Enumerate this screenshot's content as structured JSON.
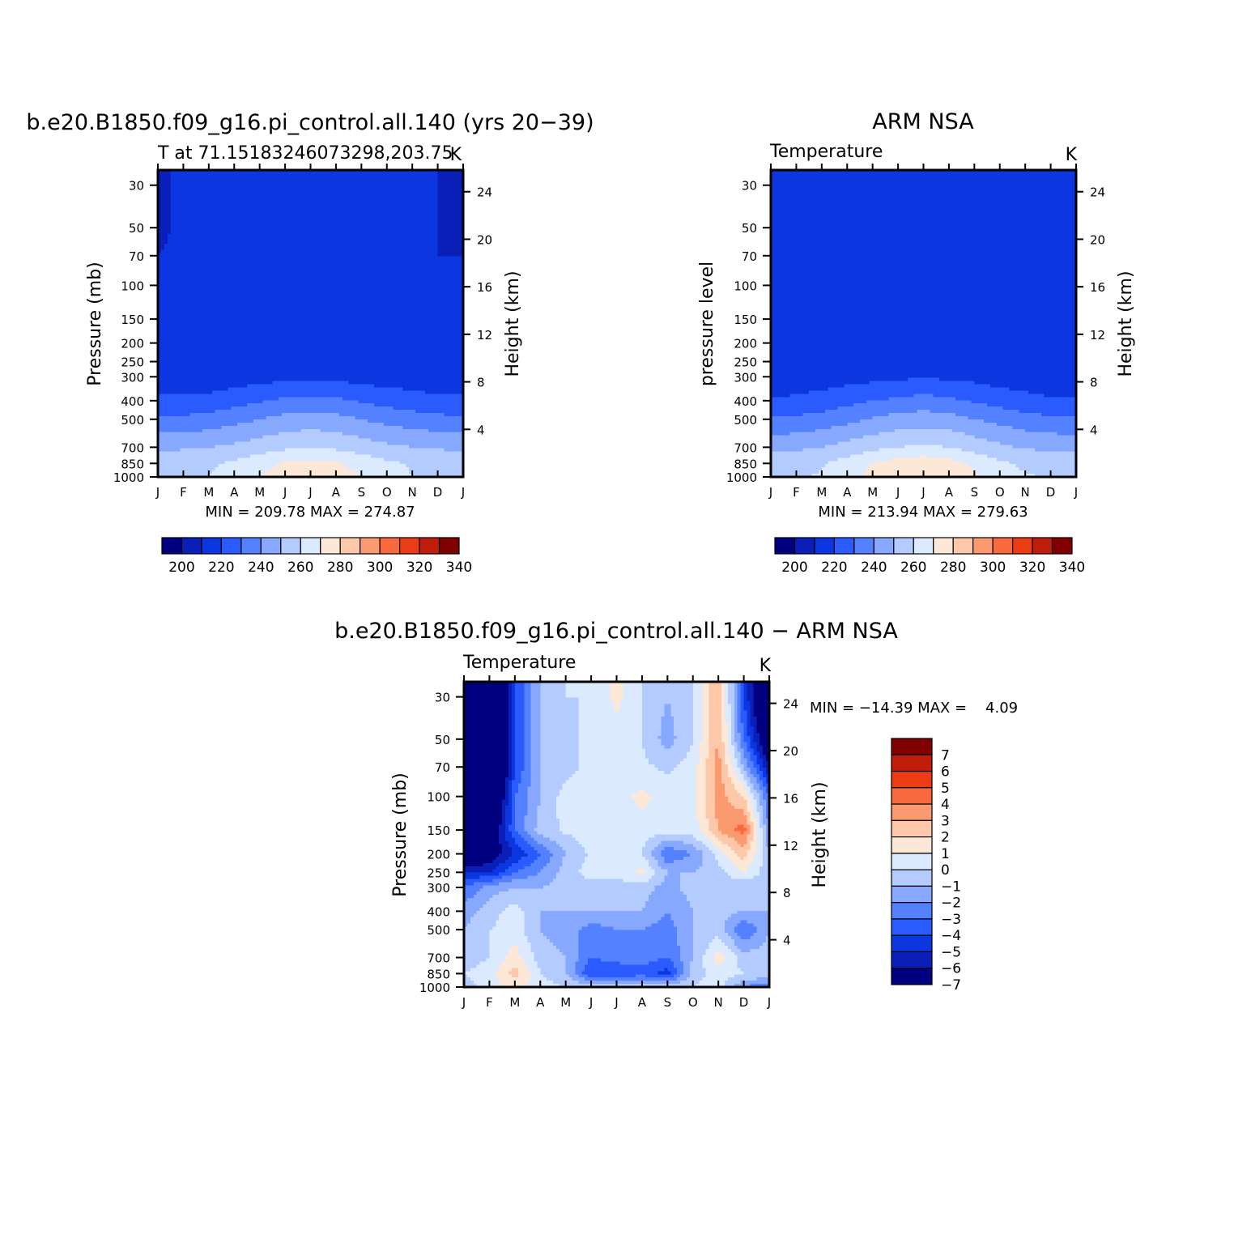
{
  "colors": {
    "abs_scale": [
      "#000080",
      "#0a1fb8",
      "#0b36e0",
      "#2a5bff",
      "#5381ff",
      "#86a8ff",
      "#b4cbff",
      "#dceaff",
      "#fde8d8",
      "#fdc7aa",
      "#fb9a6e",
      "#f86a3e",
      "#ec3c14",
      "#c01e0a",
      "#800000"
    ],
    "diff_scale": [
      "#000080",
      "#0a1fb8",
      "#0b36e0",
      "#2a5bff",
      "#5381ff",
      "#86a8ff",
      "#b4cbff",
      "#dceaff",
      "#fde8d8",
      "#fdc7aa",
      "#fb9a6e",
      "#f86a3e",
      "#ec3c14",
      "#c01e0a",
      "#800000"
    ]
  },
  "chart_data": [
    {
      "id": "model",
      "type": "heatmap",
      "title": "b.e20.B1850.f09_g16.pi_control.all.140 (yrs 20−39)",
      "subtitle_left": "T at 71.15183246073298,203.75",
      "subtitle_right": "K",
      "ylabel": "Pressure (mb)",
      "y2label": "Height (km)",
      "x_ticks": [
        "J",
        "F",
        "M",
        "A",
        "M",
        "J",
        "J",
        "A",
        "S",
        "O",
        "N",
        "D",
        "J"
      ],
      "y_ticks": [
        30,
        50,
        70,
        100,
        150,
        200,
        250,
        300,
        400,
        500,
        700,
        850,
        1000
      ],
      "y2_ticks": [
        24,
        20,
        16,
        12,
        8,
        4
      ],
      "y_scale": "log",
      "ylim": [
        1000,
        25
      ],
      "stats": "MIN = 209.78 MAX = 274.87",
      "colorbar_labels": [
        "200",
        "220",
        "240",
        "260",
        "280",
        "300",
        "320",
        "340"
      ],
      "levels": [
        195,
        200,
        205,
        210,
        215,
        220,
        230,
        240,
        250,
        260,
        270,
        280,
        290,
        300,
        310,
        320,
        330,
        340,
        350
      ],
      "pressure_levels": [
        25,
        30,
        50,
        70,
        100,
        150,
        200,
        250,
        300,
        400,
        500,
        700,
        850,
        1000
      ],
      "values": [
        [
          209,
          211,
          212,
          214,
          214,
          215,
          217,
          216,
          215,
          213,
          211,
          210,
          209
        ],
        [
          209,
          211,
          212,
          214,
          214,
          215,
          217,
          216,
          215,
          213,
          211,
          210,
          209
        ],
        [
          209,
          211,
          213,
          214,
          214,
          215,
          216,
          216,
          215,
          213,
          211,
          210,
          209
        ],
        [
          210,
          211,
          213,
          214,
          214,
          215,
          216,
          216,
          215,
          212,
          211,
          210,
          210
        ],
        [
          210,
          211,
          213,
          214,
          214,
          215,
          216,
          216,
          215,
          213,
          212,
          211,
          210
        ],
        [
          211,
          212,
          213,
          214,
          214,
          215,
          216,
          216,
          215,
          214,
          213,
          212,
          211
        ],
        [
          211,
          212,
          213,
          215,
          215,
          215,
          216,
          216,
          215,
          214,
          213,
          212,
          211
        ],
        [
          211,
          212,
          213,
          214,
          215,
          216,
          216,
          216,
          215,
          213,
          212,
          211,
          211
        ],
        [
          214,
          214,
          214,
          215,
          216,
          217,
          218,
          217,
          216,
          215,
          215,
          214,
          214
        ],
        [
          222,
          222,
          223,
          226,
          229,
          232,
          233,
          232,
          229,
          226,
          224,
          222,
          222
        ],
        [
          232,
          232,
          234,
          237,
          240,
          243,
          244,
          243,
          240,
          237,
          235,
          233,
          232
        ],
        [
          248,
          249,
          250,
          252,
          255,
          258,
          260,
          258,
          255,
          252,
          250,
          249,
          248
        ],
        [
          256,
          256,
          258,
          262,
          267,
          271,
          273,
          271,
          267,
          262,
          259,
          257,
          256
        ],
        [
          258,
          258,
          260,
          264,
          270,
          274,
          275,
          274,
          270,
          264,
          260,
          259,
          258
        ]
      ]
    },
    {
      "id": "obs",
      "type": "heatmap",
      "title": "ARM NSA",
      "subtitle_left": "Temperature",
      "subtitle_right": "K",
      "ylabel": "pressure level",
      "y2label": "Height (km)",
      "x_ticks": [
        "J",
        "F",
        "M",
        "A",
        "M",
        "J",
        "J",
        "A",
        "S",
        "O",
        "N",
        "D",
        "J"
      ],
      "y_ticks": [
        30,
        50,
        70,
        100,
        150,
        200,
        250,
        300,
        400,
        500,
        700,
        850,
        1000
      ],
      "y2_ticks": [
        24,
        20,
        16,
        12,
        8,
        4
      ],
      "y_scale": "log",
      "ylim": [
        1000,
        25
      ],
      "stats": "MIN = 213.94 MAX = 279.63",
      "colorbar_labels": [
        "200",
        "220",
        "240",
        "260",
        "280",
        "300",
        "320",
        "340"
      ],
      "levels": [
        195,
        200,
        205,
        210,
        215,
        220,
        230,
        240,
        250,
        260,
        270,
        280,
        290,
        300,
        310,
        320,
        330,
        340,
        350
      ],
      "pressure_levels": [
        25,
        30,
        50,
        70,
        100,
        150,
        200,
        250,
        300,
        400,
        500,
        700,
        850,
        1000
      ],
      "values": [
        [
          216,
          216,
          217,
          217,
          217,
          217,
          218,
          217,
          217,
          216,
          215,
          214,
          214
        ],
        [
          216,
          216,
          217,
          217,
          217,
          217,
          218,
          217,
          217,
          216,
          215,
          214,
          214
        ],
        [
          216,
          216,
          217,
          217,
          217,
          217,
          218,
          217,
          217,
          216,
          215,
          214,
          214
        ],
        [
          216,
          216,
          217,
          217,
          217,
          217,
          218,
          217,
          216,
          215,
          214,
          214,
          214
        ],
        [
          216,
          216,
          216,
          217,
          217,
          217,
          218,
          217,
          216,
          215,
          214,
          214,
          214
        ],
        [
          215,
          216,
          216,
          217,
          217,
          217,
          218,
          217,
          216,
          215,
          214,
          214,
          214
        ],
        [
          214,
          215,
          216,
          216,
          217,
          217,
          218,
          217,
          216,
          215,
          214,
          214,
          214
        ],
        [
          213,
          213,
          215,
          216,
          217,
          217,
          218,
          217,
          216,
          215,
          214,
          214,
          214
        ],
        [
          214,
          214,
          215,
          216,
          217,
          218,
          219,
          218,
          217,
          215,
          215,
          214,
          214
        ],
        [
          221,
          222,
          224,
          227,
          230,
          232,
          234,
          232,
          229,
          226,
          223,
          221,
          221
        ],
        [
          231,
          232,
          234,
          237,
          241,
          244,
          245,
          244,
          240,
          237,
          234,
          232,
          231
        ],
        [
          247,
          248,
          250,
          254,
          257,
          260,
          262,
          260,
          256,
          252,
          249,
          248,
          247
        ],
        [
          256,
          257,
          259,
          264,
          270,
          275,
          277,
          274,
          268,
          262,
          258,
          257,
          256
        ],
        [
          259,
          259,
          261,
          266,
          273,
          278,
          279,
          277,
          271,
          265,
          261,
          259,
          259
        ]
      ]
    },
    {
      "id": "diff",
      "type": "heatmap",
      "title": "b.e20.B1850.f09_g16.pi_control.all.140 − ARM NSA",
      "subtitle_left": "Temperature",
      "subtitle_right": "K",
      "ylabel": "Pressure (mb)",
      "y2label": "Height (km)",
      "x_ticks": [
        "J",
        "F",
        "M",
        "A",
        "M",
        "J",
        "J",
        "A",
        "S",
        "O",
        "N",
        "D",
        "J"
      ],
      "y_ticks": [
        30,
        50,
        70,
        100,
        150,
        200,
        250,
        300,
        400,
        500,
        700,
        850,
        1000
      ],
      "y2_ticks": [
        24,
        20,
        16,
        12,
        8,
        4
      ],
      "y_scale": "log",
      "ylim": [
        1000,
        25
      ],
      "stats": "MIN = −14.39 MAX =    4.09",
      "colorbar_labels": [
        "7",
        "6",
        "5",
        "4",
        "3",
        "2",
        "1",
        "0",
        "−1",
        "−2",
        "−3",
        "−4",
        "−5",
        "−6",
        "−7"
      ],
      "levels": [
        -8,
        -7,
        -6,
        -5,
        -4,
        -3,
        -2,
        -1,
        0,
        1,
        2,
        3,
        4,
        5,
        6,
        7,
        8
      ],
      "pressure_levels": [
        25,
        30,
        50,
        70,
        100,
        150,
        200,
        250,
        300,
        400,
        500,
        700,
        850,
        1000
      ],
      "values": [
        [
          -12,
          -12,
          -5,
          -2,
          -1,
          -1,
          0.3,
          -1,
          -2,
          -1,
          2,
          -5,
          -11
        ],
        [
          -12,
          -12,
          -5,
          -2,
          -1,
          -1,
          0.3,
          -1,
          -2,
          -1,
          2,
          -5,
          -11
        ],
        [
          -13,
          -13,
          -5,
          -2,
          -1.5,
          -0.5,
          -0.5,
          -1,
          -2.5,
          -1,
          2,
          -4,
          -9
        ],
        [
          -13,
          -13,
          -5,
          -2,
          -1.5,
          -0.5,
          -0.5,
          -0.8,
          -1.2,
          -0.5,
          2.5,
          -2,
          -7
        ],
        [
          -13,
          -11,
          -4,
          -2,
          -0.5,
          -0.5,
          -0.5,
          0.3,
          -0.5,
          -0.5,
          2.5,
          1,
          -4
        ],
        [
          -11,
          -9,
          -4,
          -1.5,
          -0.8,
          -0.5,
          -0.5,
          -0.5,
          -0.5,
          -0.5,
          2,
          3.5,
          -3
        ],
        [
          -10,
          -8,
          -6,
          -4,
          -2,
          -0.8,
          -0.5,
          -1,
          -4,
          -3,
          -0.5,
          1.5,
          -2
        ],
        [
          -6,
          -6,
          -4,
          -3,
          -1.5,
          -0.5,
          -0.6,
          0.3,
          -2,
          -2,
          -1.5,
          0,
          -1.5
        ],
        [
          -4,
          -2.5,
          -2,
          -2,
          -1.5,
          -1.5,
          -1.5,
          -1.5,
          -2.5,
          -1.5,
          -1,
          -2,
          -2
        ],
        [
          -2.5,
          -1.5,
          -0.5,
          -2,
          -2,
          -2,
          -2,
          -2,
          -3,
          -2,
          -1.5,
          -2,
          -2
        ],
        [
          -2,
          -1,
          -0.5,
          -2,
          -2.5,
          -3.5,
          -3,
          -3,
          -3.5,
          -2,
          -1.5,
          -4,
          -2
        ],
        [
          -1.5,
          -1,
          0.5,
          -1.5,
          -2,
          -4,
          -3.5,
          -3.5,
          -4,
          -2,
          0.5,
          -1.5,
          -1.5
        ],
        [
          -1,
          -0.5,
          1.5,
          -1,
          -2,
          -5,
          -5,
          -4.5,
          -5.5,
          -1.5,
          -0.5,
          -1,
          -1
        ],
        [
          -1.5,
          -0.5,
          0.5,
          -0.5,
          -1,
          -1.5,
          -1,
          -1,
          -1.5,
          -1,
          -0.5,
          -3,
          -4
        ]
      ]
    }
  ]
}
